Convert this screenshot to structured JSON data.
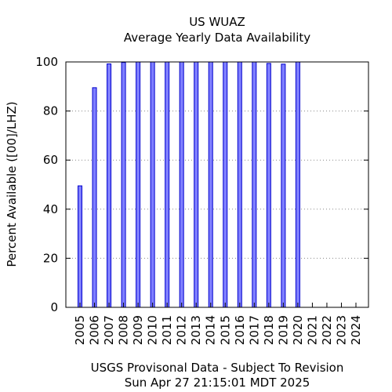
{
  "chart_data": {
    "type": "bar",
    "title": "US WUAZ",
    "subtitle": "Average Yearly Data Availability",
    "xlabel": "",
    "ylabel": "Percent Available ([00]/LHZ)",
    "categories": [
      "2005",
      "2006",
      "2007",
      "2008",
      "2009",
      "2010",
      "2011",
      "2012",
      "2013",
      "2014",
      "2015",
      "2016",
      "2017",
      "2018",
      "2019",
      "2020",
      "2021",
      "2022",
      "2023",
      "2024"
    ],
    "values": [
      49.5,
      89.5,
      99.2,
      99.8,
      100,
      100,
      100,
      100,
      100,
      100,
      100,
      100,
      100,
      99.4,
      99.1,
      100,
      null,
      null,
      null,
      null
    ],
    "ylim": [
      0,
      100
    ],
    "yticks": [
      0,
      20,
      40,
      60,
      80,
      100
    ],
    "grid": true,
    "bar_color": "#7f7fff",
    "bar_edge_color": "#0000cc",
    "footer": [
      "USGS Provisonal Data - Subject To Revision",
      "Sun Apr 27 21:15:01 MDT 2025"
    ]
  }
}
